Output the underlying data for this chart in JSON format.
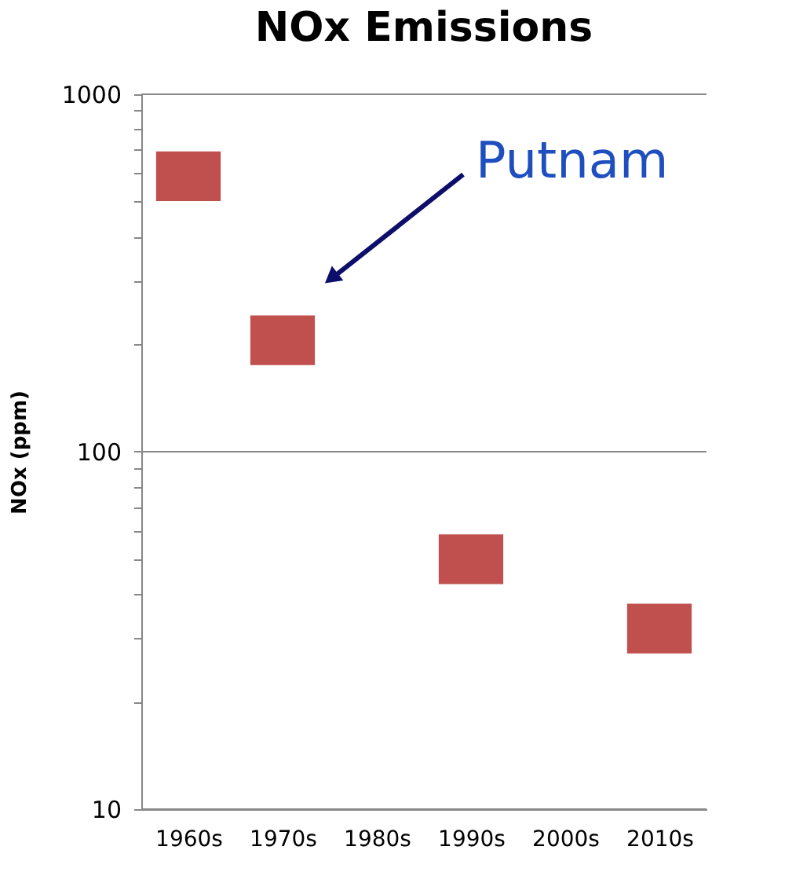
{
  "chart_data": {
    "type": "scatter",
    "title": "NOx Emissions",
    "ylabel": "NOx (ppm)",
    "categories": [
      "1960s",
      "1970s",
      "1980s",
      "1990s",
      "2000s",
      "2010s"
    ],
    "values": [
      590,
      205,
      null,
      50,
      null,
      32
    ],
    "color": "#c0504d",
    "marker": "square",
    "log": true,
    "grid": "y",
    "ylim": [
      10,
      1000
    ],
    "yticks": [
      10,
      {
        "value": 20,
        "label": null
      },
      {
        "value": 30,
        "label": null
      },
      {
        "value": 40,
        "label": null
      },
      {
        "value": 50,
        "label": null
      },
      {
        "value": 60,
        "label": null
      },
      {
        "value": 70,
        "label": null
      },
      {
        "value": 80,
        "label": null
      },
      {
        "value": 90,
        "label": null
      },
      100,
      {
        "value": 200,
        "label": null
      },
      {
        "value": 300,
        "label": null
      },
      {
        "value": 400,
        "label": null
      },
      {
        "value": 500,
        "label": null
      },
      {
        "value": 600,
        "label": null
      },
      {
        "value": 700,
        "label": null
      },
      {
        "value": 800,
        "label": null
      },
      {
        "value": 900,
        "label": null
      },
      1000
    ],
    "annotations": [
      "Putnam"
    ]
  }
}
